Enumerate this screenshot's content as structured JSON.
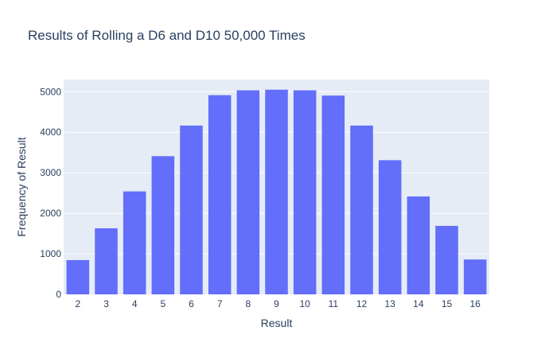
{
  "chart_data": {
    "type": "bar",
    "title": "Results of Rolling a D6 and D10 50,000 Times",
    "xlabel": "Result",
    "ylabel": "Frequency of Result",
    "categories": [
      "2",
      "3",
      "4",
      "5",
      "6",
      "7",
      "8",
      "9",
      "10",
      "11",
      "12",
      "13",
      "14",
      "15",
      "16"
    ],
    "values": [
      845,
      1630,
      2540,
      3410,
      4165,
      4915,
      5035,
      5050,
      5035,
      4905,
      4165,
      3310,
      2415,
      1690,
      860
    ],
    "y_ticks": [
      "0",
      "1000",
      "2000",
      "3000",
      "4000",
      "5000"
    ],
    "ylim": [
      0,
      5300
    ],
    "grid": true,
    "colors": {
      "bar": "#636efa",
      "plot_bg": "#e5ecf6",
      "text": "#2a3f5f"
    }
  }
}
